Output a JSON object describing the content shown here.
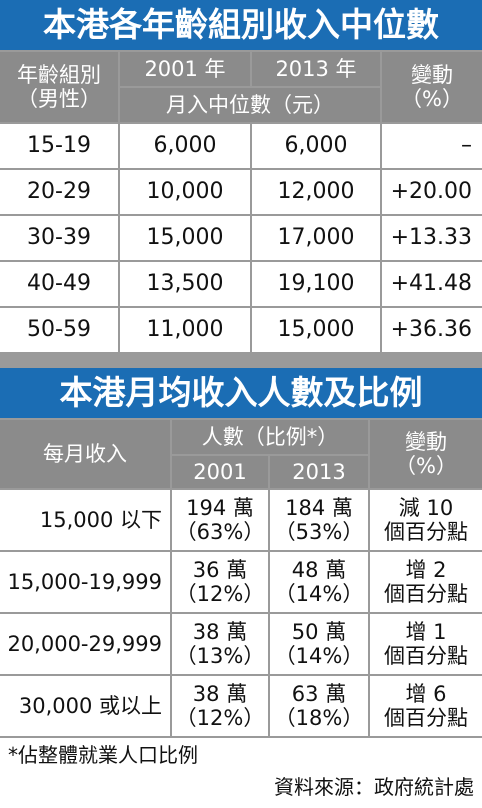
{
  "table1": {
    "title": "本港各年齡組別收入中位數",
    "header": {
      "group": "年齡組別",
      "group_note": "（男性）",
      "year1": "2001 年",
      "year2": "2013 年",
      "measure": "月入中位數（元）",
      "change": "變動",
      "change_unit": "（%）"
    },
    "rows": [
      [
        "15-19",
        "6,000",
        "6,000",
        "–"
      ],
      [
        "20-29",
        "10,000",
        "12,000",
        "+20.00"
      ],
      [
        "30-39",
        "15,000",
        "17,000",
        "+13.33"
      ],
      [
        "40-49",
        "13,500",
        "19,100",
        "+41.48"
      ],
      [
        "50-59",
        "11,000",
        "15,000",
        "+36.36"
      ]
    ]
  },
  "table2": {
    "title": "本港月均收入人數及比例",
    "header": {
      "income": "每月收入",
      "people": "人數（比例*）",
      "year1": "2001",
      "year2": "2013",
      "change": "變動",
      "change_unit": "（%）"
    },
    "rows": [
      [
        "15,000 以下",
        "194 萬",
        "（63%）",
        "184 萬",
        "（53%）",
        "減 10",
        "個百分點"
      ],
      [
        "15,000-19,999",
        "36 萬",
        "（12%）",
        "48 萬",
        "（14%）",
        "增 2",
        "個百分點"
      ],
      [
        "20,000-29,999",
        "38 萬",
        "（13%）",
        "50 萬",
        "（14%）",
        "增 1",
        "個百分點"
      ],
      [
        "30,000 或以上",
        "38 萬",
        "（12%）",
        "63 萬",
        "（18%）",
        "增 6",
        "個百分點"
      ]
    ]
  },
  "footer": {
    "note": "*佔整體就業人口比例",
    "source": "資料來源：政府統計處"
  }
}
